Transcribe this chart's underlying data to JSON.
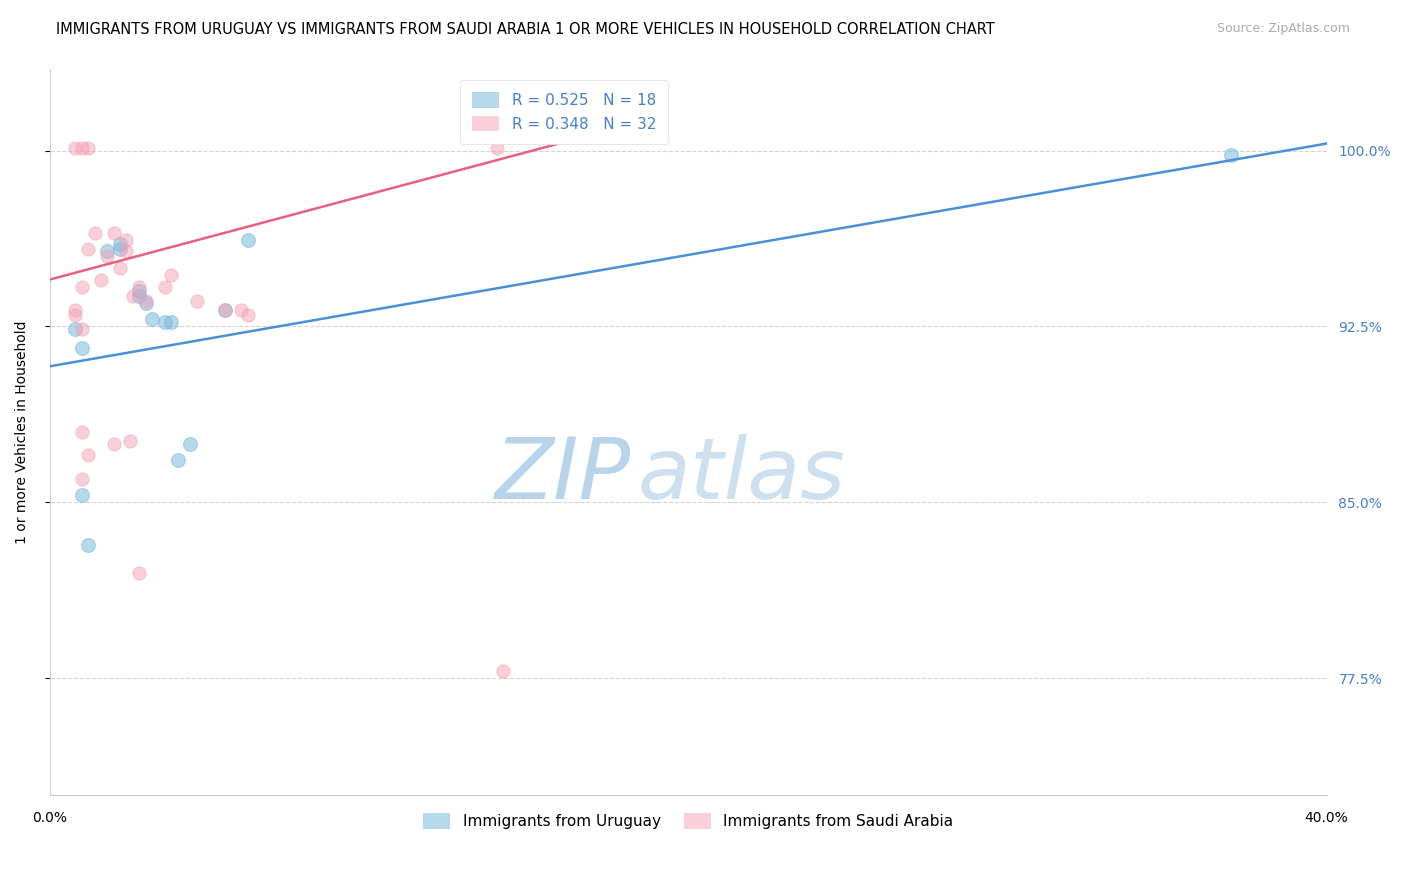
{
  "title": "IMMIGRANTS FROM URUGUAY VS IMMIGRANTS FROM SAUDI ARABIA 1 OR MORE VEHICLES IN HOUSEHOLD CORRELATION CHART",
  "source": "Source: ZipAtlas.com",
  "ylabel_label": "1 or more Vehicles in Household",
  "ytick_labels": [
    "100.0%",
    "92.5%",
    "85.0%",
    "77.5%"
  ],
  "ytick_values": [
    1.0,
    0.925,
    0.85,
    0.775
  ],
  "xmin": 0.0,
  "xmax": 0.4,
  "ymin": 0.725,
  "ymax": 1.035,
  "legend_blue_r": "R = 0.525",
  "legend_blue_n": "N = 18",
  "legend_pink_r": "R = 0.348",
  "legend_pink_n": "N = 32",
  "legend_blue_label": "Immigrants from Uruguay",
  "legend_pink_label": "Immigrants from Saudi Arabia",
  "blue_color": "#7ab8dc",
  "pink_color": "#f4a0b5",
  "blue_line_color": "#4a90d9",
  "pink_line_color": "#e86080",
  "blue_line_x0": 0.0,
  "blue_line_y0": 0.908,
  "blue_line_x1": 0.4,
  "blue_line_y1": 1.003,
  "pink_line_x0": 0.0,
  "pink_line_y0": 0.945,
  "pink_line_x1": 0.165,
  "pink_line_y1": 1.005,
  "blue_scatter_x": [
    0.008,
    0.018,
    0.022,
    0.022,
    0.028,
    0.028,
    0.03,
    0.032,
    0.036,
    0.038,
    0.04,
    0.044,
    0.055,
    0.062,
    0.01,
    0.012,
    0.01,
    0.37
  ],
  "blue_scatter_y": [
    0.924,
    0.957,
    0.96,
    0.958,
    0.938,
    0.94,
    0.935,
    0.928,
    0.927,
    0.927,
    0.868,
    0.875,
    0.932,
    0.962,
    0.853,
    0.832,
    0.916,
    0.998
  ],
  "pink_scatter_x": [
    0.008,
    0.01,
    0.012,
    0.014,
    0.016,
    0.018,
    0.02,
    0.022,
    0.024,
    0.024,
    0.026,
    0.028,
    0.03,
    0.036,
    0.038,
    0.046,
    0.008,
    0.01,
    0.012,
    0.01,
    0.02,
    0.025,
    0.008,
    0.01,
    0.012,
    0.055,
    0.062,
    0.028,
    0.14,
    0.142,
    0.01,
    0.06
  ],
  "pink_scatter_y": [
    0.932,
    0.942,
    0.958,
    0.965,
    0.945,
    0.955,
    0.965,
    0.95,
    0.957,
    0.962,
    0.938,
    0.942,
    0.936,
    0.942,
    0.947,
    0.936,
    0.93,
    0.88,
    0.87,
    0.86,
    0.875,
    0.876,
    1.001,
    1.001,
    1.001,
    0.932,
    0.93,
    0.82,
    1.001,
    0.778,
    0.924,
    0.932
  ],
  "blue_marker_size": 100,
  "pink_marker_size": 90,
  "watermark_zip": "ZIP",
  "watermark_atlas": "atlas",
  "watermark_zip_color": "#b8d4ea",
  "watermark_atlas_color": "#cce0f0",
  "background_color": "#ffffff",
  "grid_color": "#c8c8c8",
  "title_fontsize": 10.5,
  "axis_label_fontsize": 10,
  "tick_fontsize": 10,
  "legend_fontsize": 11,
  "source_fontsize": 9,
  "right_tick_color": "#4a7fc4"
}
